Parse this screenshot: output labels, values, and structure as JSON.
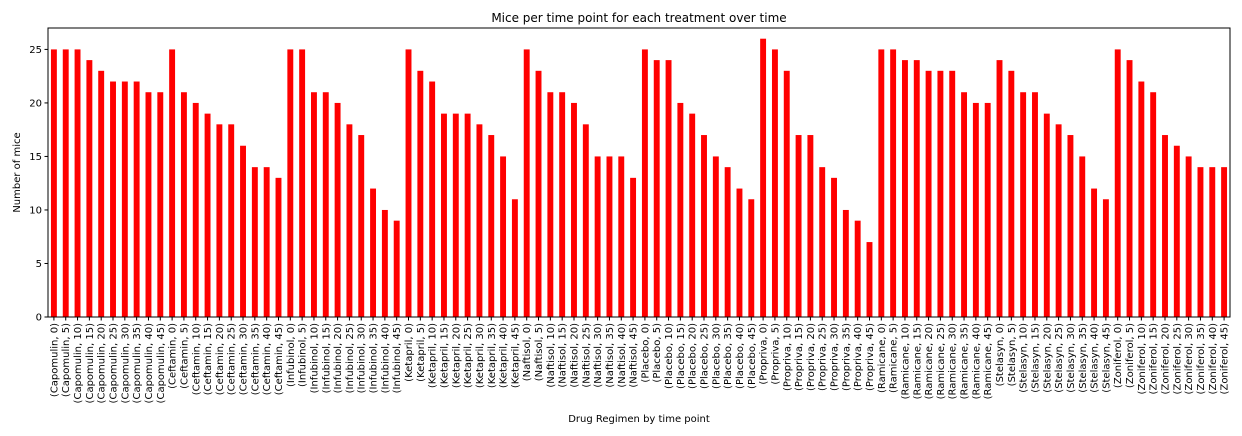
{
  "chart_data": {
    "type": "bar",
    "title": "Mice per time point for each treatment over time",
    "xlabel": "Drug Regimen by time point",
    "ylabel": "Number of mice",
    "ylim": [
      0,
      27
    ],
    "yticks": [
      0,
      5,
      10,
      15,
      20,
      25
    ],
    "bar_color": "#ff0000",
    "grid": false,
    "categories": [
      "(Capomulin, 0)",
      "(Capomulin, 5)",
      "(Capomulin, 10)",
      "(Capomulin, 15)",
      "(Capomulin, 20)",
      "(Capomulin, 25)",
      "(Capomulin, 30)",
      "(Capomulin, 35)",
      "(Capomulin, 40)",
      "(Capomulin, 45)",
      "(Ceftamin, 0)",
      "(Ceftamin, 5)",
      "(Ceftamin, 10)",
      "(Ceftamin, 15)",
      "(Ceftamin, 20)",
      "(Ceftamin, 25)",
      "(Ceftamin, 30)",
      "(Ceftamin, 35)",
      "(Ceftamin, 40)",
      "(Ceftamin, 45)",
      "(Infubinol, 0)",
      "(Infubinol, 5)",
      "(Infubinol, 10)",
      "(Infubinol, 15)",
      "(Infubinol, 20)",
      "(Infubinol, 25)",
      "(Infubinol, 30)",
      "(Infubinol, 35)",
      "(Infubinol, 40)",
      "(Infubinol, 45)",
      "(Ketapril, 0)",
      "(Ketapril, 5)",
      "(Ketapril, 10)",
      "(Ketapril, 15)",
      "(Ketapril, 20)",
      "(Ketapril, 25)",
      "(Ketapril, 30)",
      "(Ketapril, 35)",
      "(Ketapril, 40)",
      "(Ketapril, 45)",
      "(Naftisol, 0)",
      "(Naftisol, 5)",
      "(Naftisol, 10)",
      "(Naftisol, 15)",
      "(Naftisol, 20)",
      "(Naftisol, 25)",
      "(Naftisol, 30)",
      "(Naftisol, 35)",
      "(Naftisol, 40)",
      "(Naftisol, 45)",
      "(Placebo, 0)",
      "(Placebo, 5)",
      "(Placebo, 10)",
      "(Placebo, 15)",
      "(Placebo, 20)",
      "(Placebo, 25)",
      "(Placebo, 30)",
      "(Placebo, 35)",
      "(Placebo, 40)",
      "(Placebo, 45)",
      "(Propriva, 0)",
      "(Propriva, 5)",
      "(Propriva, 10)",
      "(Propriva, 15)",
      "(Propriva, 20)",
      "(Propriva, 25)",
      "(Propriva, 30)",
      "(Propriva, 35)",
      "(Propriva, 40)",
      "(Propriva, 45)",
      "(Ramicane, 0)",
      "(Ramicane, 5)",
      "(Ramicane, 10)",
      "(Ramicane, 15)",
      "(Ramicane, 20)",
      "(Ramicane, 25)",
      "(Ramicane, 30)",
      "(Ramicane, 35)",
      "(Ramicane, 40)",
      "(Ramicane, 45)",
      "(Stelasyn, 0)",
      "(Stelasyn, 5)",
      "(Stelasyn, 10)",
      "(Stelasyn, 15)",
      "(Stelasyn, 20)",
      "(Stelasyn, 25)",
      "(Stelasyn, 30)",
      "(Stelasyn, 35)",
      "(Stelasyn, 40)",
      "(Stelasyn, 45)",
      "(Zoniferol, 0)",
      "(Zoniferol, 5)",
      "(Zoniferol, 10)",
      "(Zoniferol, 15)",
      "(Zoniferol, 20)",
      "(Zoniferol, 25)",
      "(Zoniferol, 30)",
      "(Zoniferol, 35)",
      "(Zoniferol, 40)",
      "(Zoniferol, 45)"
    ],
    "values": [
      25,
      25,
      25,
      24,
      23,
      22,
      22,
      22,
      21,
      21,
      25,
      21,
      20,
      19,
      18,
      18,
      16,
      14,
      14,
      13,
      25,
      25,
      21,
      21,
      20,
      18,
      17,
      12,
      10,
      9,
      25,
      23,
      22,
      19,
      19,
      19,
      18,
      17,
      15,
      11,
      25,
      23,
      21,
      21,
      20,
      18,
      15,
      15,
      15,
      13,
      25,
      24,
      24,
      20,
      19,
      17,
      15,
      14,
      12,
      11,
      26,
      25,
      23,
      17,
      17,
      14,
      13,
      10,
      9,
      7,
      25,
      25,
      24,
      24,
      23,
      23,
      23,
      21,
      20,
      20,
      24,
      23,
      21,
      21,
      19,
      18,
      17,
      15,
      12,
      11,
      25,
      24,
      22,
      21,
      17,
      16,
      15,
      14,
      14,
      14
    ]
  }
}
